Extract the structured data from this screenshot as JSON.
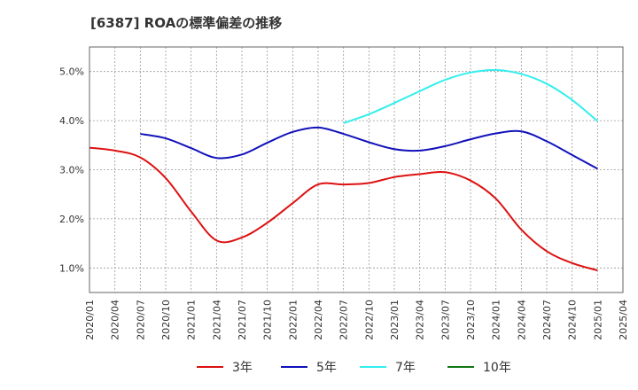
{
  "chart_data": {
    "type": "line",
    "title": "[6387]  ROAの標準偏差の推移",
    "xlabel": "",
    "ylabel": "",
    "x": [
      "2020/01",
      "2020/04",
      "2020/07",
      "2020/10",
      "2021/01",
      "2021/04",
      "2021/07",
      "2021/10",
      "2022/01",
      "2022/04",
      "2022/07",
      "2022/10",
      "2023/01",
      "2023/04",
      "2023/07",
      "2023/10",
      "2024/01",
      "2024/04",
      "2024/07",
      "2024/10",
      "2025/01",
      "2025/04"
    ],
    "ylim": [
      0.5,
      5.5
    ],
    "yticks": [
      1.0,
      2.0,
      3.0,
      4.0,
      5.0
    ],
    "ytick_labels": [
      "1.0%",
      "2.0%",
      "3.0%",
      "4.0%",
      "5.0%"
    ],
    "grid": true,
    "legend_position": "bottom",
    "series": [
      {
        "name": "3年",
        "color": "#dd1111",
        "values": [
          3.45,
          3.39,
          3.25,
          2.83,
          2.15,
          1.56,
          1.62,
          1.92,
          2.32,
          2.7,
          2.7,
          2.73,
          2.85,
          2.91,
          2.95,
          2.78,
          2.41,
          1.78,
          1.34,
          1.1,
          0.95,
          null
        ]
      },
      {
        "name": "5年",
        "color": "#1111bb",
        "values": [
          null,
          null,
          3.73,
          3.64,
          3.44,
          3.24,
          3.31,
          3.55,
          3.77,
          3.86,
          3.73,
          3.56,
          3.42,
          3.39,
          3.48,
          3.62,
          3.74,
          3.78,
          3.58,
          3.3,
          3.02,
          null
        ]
      },
      {
        "name": "7年",
        "color": "#33eeee",
        "values": [
          null,
          null,
          null,
          null,
          null,
          null,
          null,
          null,
          null,
          null,
          3.95,
          4.13,
          4.36,
          4.6,
          4.83,
          4.98,
          5.03,
          4.95,
          4.75,
          4.42,
          3.99,
          null
        ]
      },
      {
        "name": "10年",
        "color": "#117711",
        "values": [
          null,
          null,
          null,
          null,
          null,
          null,
          null,
          null,
          null,
          null,
          null,
          null,
          null,
          null,
          null,
          null,
          null,
          null,
          null,
          null,
          null,
          null
        ]
      }
    ]
  }
}
